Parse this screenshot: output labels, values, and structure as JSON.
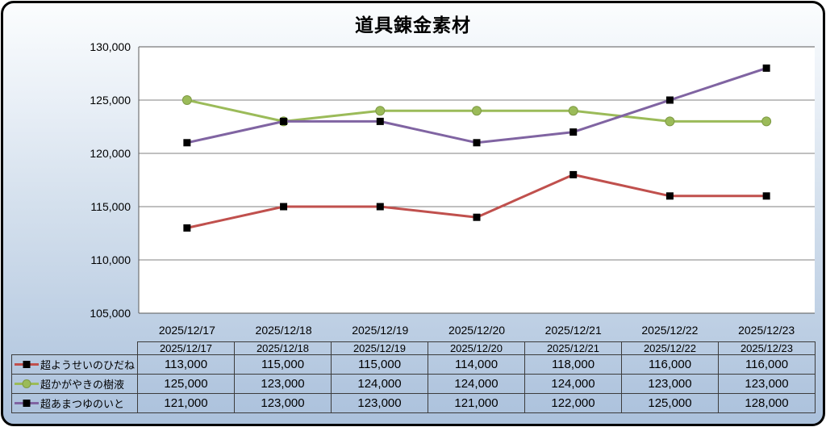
{
  "chart_data": {
    "type": "line",
    "title": "道具錬金素材",
    "categories": [
      "2025/12/17",
      "2025/12/18",
      "2025/12/19",
      "2025/12/20",
      "2025/12/21",
      "2025/12/22",
      "2025/12/23"
    ],
    "series": [
      {
        "name": "超ようせいのひだね",
        "line_color": "#C0504D",
        "marker": "square",
        "marker_color": "#000000",
        "values": [
          113000,
          115000,
          115000,
          114000,
          118000,
          116000,
          116000
        ]
      },
      {
        "name": "超かがやきの樹液",
        "line_color": "#9BBB59",
        "marker": "circle",
        "marker_color": "#9BBB59",
        "values": [
          125000,
          123000,
          124000,
          124000,
          124000,
          123000,
          123000
        ]
      },
      {
        "name": "超あまつゆのいと",
        "line_color": "#8064A2",
        "marker": "square",
        "marker_color": "#000000",
        "values": [
          121000,
          123000,
          123000,
          121000,
          122000,
          125000,
          128000
        ]
      }
    ],
    "ylim": [
      105000,
      130000
    ],
    "ytick_step": 5000,
    "ytick_labels": [
      "130,000",
      "125,000",
      "120,000",
      "115,000",
      "110,000",
      "105,000"
    ],
    "grid": true,
    "gridline_color": "#808080",
    "axis_color": "#595959",
    "plot_background": "#FFFFFF",
    "legend_position": "table-left"
  },
  "table": {
    "header_dates": [
      "2025/12/17",
      "2025/12/18",
      "2025/12/19",
      "2025/12/20",
      "2025/12/21",
      "2025/12/22",
      "2025/12/23"
    ],
    "rows": [
      {
        "label": "超ようせいのひだね",
        "marker": "square",
        "line_color": "#C0504D",
        "marker_color": "#000000",
        "values": [
          "113,000",
          "115,000",
          "115,000",
          "114,000",
          "118,000",
          "116,000",
          "116,000"
        ]
      },
      {
        "label": "超かがやきの樹液",
        "marker": "circle",
        "line_color": "#9BBB59",
        "marker_color": "#9BBB59",
        "values": [
          "125,000",
          "123,000",
          "124,000",
          "124,000",
          "124,000",
          "123,000",
          "123,000"
        ]
      },
      {
        "label": "超あまつゆのいと",
        "marker": "square",
        "line_color": "#8064A2",
        "marker_color": "#000000",
        "values": [
          "121,000",
          "123,000",
          "123,000",
          "121,000",
          "122,000",
          "125,000",
          "128,000"
        ]
      }
    ]
  },
  "style": {
    "frame_border": "#000000",
    "background_top": "#FBFDFE",
    "background_bottom": "#ABC1DC",
    "text_color": "#000000"
  }
}
